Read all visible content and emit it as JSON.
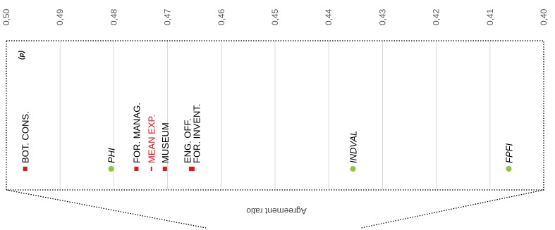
{
  "chart_data": {
    "type": "scatter",
    "panel_label": "(d)",
    "xlabel": "Agreement ratio",
    "xlim": [
      0.4,
      0.5
    ],
    "x_reversed": true,
    "ticks": [
      "0,50",
      "0,49",
      "0,48",
      "0,47",
      "0,46",
      "0,45",
      "0,44",
      "0,43",
      "0,42",
      "0,41",
      "0,40"
    ],
    "tick_values": [
      0.5,
      0.49,
      0.48,
      0.47,
      0.46,
      0.45,
      0.44,
      0.43,
      0.42,
      0.41,
      0.4
    ],
    "grid": true,
    "label_orientation": "rotated, reading bottom-to-top",
    "colors": {
      "square": "#e8141a",
      "circle": "#8cc63e",
      "mean": "#e8141a",
      "grid": "#d9d9d9",
      "frame": "#000000"
    },
    "series": [
      {
        "marker": "square",
        "points": [
          {
            "label": "BOT. CONS.",
            "x": 0.4965
          },
          {
            "label": "FOR. MANAG.",
            "x": 0.4758
          },
          {
            "label": "MUSEUM",
            "x": 0.4705
          },
          {
            "label": "ENG. OFF.",
            "x": 0.4655
          },
          {
            "label": "FOR. INVENT.",
            "x": 0.4655
          }
        ]
      },
      {
        "marker": "circle",
        "points": [
          {
            "label": "PHI",
            "x": 0.4805
          },
          {
            "label": "INDVAL",
            "x": 0.4355
          },
          {
            "label": "FPFI",
            "x": 0.4065
          }
        ]
      }
    ],
    "mean": {
      "label": "MEAN EXP.",
      "x": 0.473
    }
  }
}
